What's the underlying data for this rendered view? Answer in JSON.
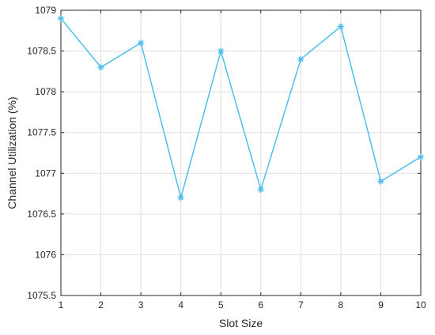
{
  "chart_data": {
    "type": "line",
    "xlabel": "Slot Size",
    "ylabel": "Channel Utilization (%)",
    "xlim": [
      1,
      10
    ],
    "ylim": [
      1075.5,
      1079
    ],
    "x_ticks": [
      "1",
      "2",
      "3",
      "4",
      "5",
      "6",
      "7",
      "8",
      "9",
      "10"
    ],
    "y_ticks": [
      "1075.5",
      "1076",
      "1076.5",
      "1077",
      "1077.5",
      "1078",
      "1078.5",
      "1079"
    ],
    "grid": true,
    "marker": "asterisk",
    "color": "#4DBEEE",
    "series": [
      {
        "x": [
          1,
          2,
          3,
          4,
          5,
          6,
          7,
          8,
          9,
          10
        ],
        "values": [
          1078.9,
          1078.3,
          1078.6,
          1076.7,
          1078.5,
          1076.8,
          1078.4,
          1078.8,
          1076.9,
          1077.2
        ]
      }
    ]
  }
}
